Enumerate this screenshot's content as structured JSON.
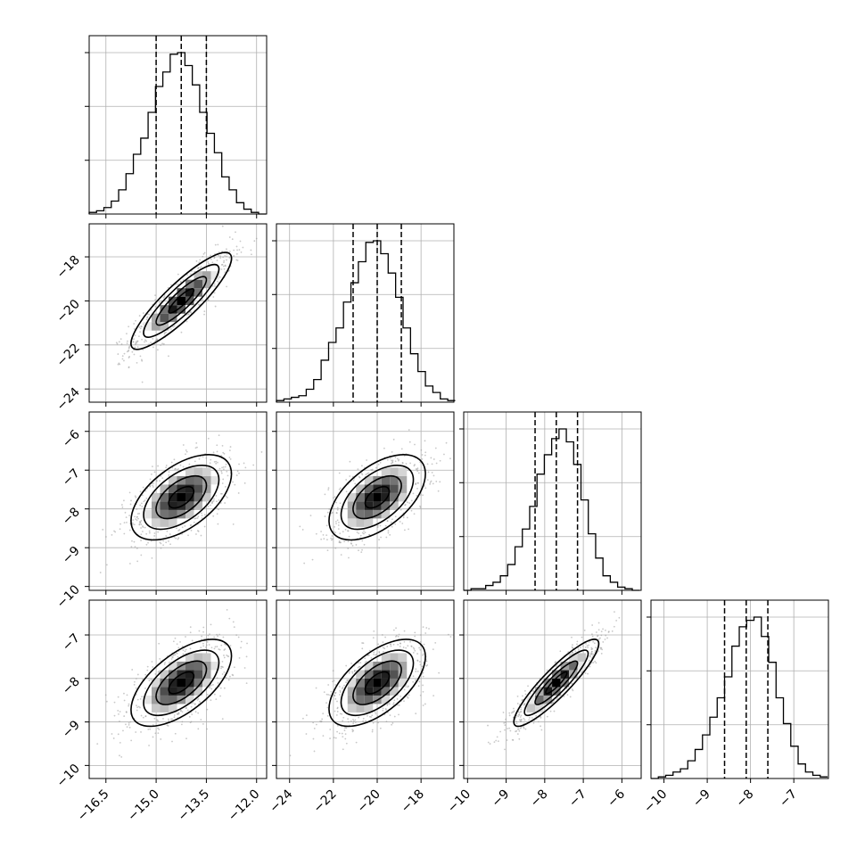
{
  "chart_data": {
    "type": "corner",
    "grid": true,
    "parameters": [
      {
        "range": [
          -17.0,
          -11.7
        ],
        "ticks": [
          "−16.5",
          "−15.0",
          "−13.5",
          "−12.0"
        ],
        "tick_values": [
          -16.5,
          -15.0,
          -13.5,
          -12.0
        ],
        "quantiles": [
          -15.0,
          -14.25,
          -13.5
        ],
        "mean": -14.25,
        "sigma": 0.75
      },
      {
        "range": [
          -24.6,
          -16.5
        ],
        "ticks": [
          "−24",
          "−22",
          "−20",
          "−18"
        ],
        "tick_values": [
          -24,
          -22,
          -20,
          -18
        ],
        "quantiles": [
          -21.1,
          -20.0,
          -18.9
        ],
        "mean": -20.0,
        "sigma": 1.1
      },
      {
        "range": [
          -10.1,
          -5.5
        ],
        "ticks": [
          "−10",
          "−9",
          "−8",
          "−7",
          "−6"
        ],
        "tick_values": [
          -10,
          -9,
          -8,
          -7,
          -6
        ],
        "quantiles": [
          -8.25,
          -7.7,
          -7.15
        ],
        "mean": -7.7,
        "sigma": 0.55
      },
      {
        "range": [
          -10.3,
          -6.2
        ],
        "ticks": [
          "−10",
          "−9",
          "−8",
          "−7"
        ],
        "tick_values": [
          -10,
          -9,
          -8,
          -7
        ],
        "quantiles": [
          -8.6,
          -8.1,
          -7.6
        ],
        "mean": -8.1,
        "sigma": 0.5
      }
    ],
    "histograms": [
      {
        "param": 0,
        "bins": [
          -17.0,
          -16.78,
          -16.56,
          -16.34,
          -16.12,
          -15.9,
          -15.68,
          -15.46,
          -15.24,
          -15.02,
          -14.8,
          -14.58,
          -14.36,
          -14.14,
          -13.92,
          -13.7,
          -13.48,
          -13.26,
          -13.04,
          -12.82,
          -12.6,
          -12.38,
          -12.16,
          -11.94,
          -11.72
        ],
        "counts": [
          1,
          2,
          4,
          8,
          15,
          25,
          37,
          47,
          63,
          79,
          88,
          99,
          100,
          92,
          80,
          63,
          50,
          38,
          23,
          15,
          7,
          3,
          1,
          0
        ]
      },
      {
        "param": 1,
        "bins": [
          -24.6,
          -24.26,
          -23.92,
          -23.58,
          -23.24,
          -22.9,
          -22.56,
          -22.22,
          -21.88,
          -21.54,
          -21.2,
          -20.86,
          -20.52,
          -20.18,
          -19.84,
          -19.5,
          -19.16,
          -18.82,
          -18.48,
          -18.14,
          -17.8,
          -17.46,
          -17.12,
          -16.78,
          -16.44
        ],
        "counts": [
          1,
          2,
          3,
          4,
          8,
          14,
          26,
          37,
          46,
          62,
          74,
          87,
          99,
          100,
          92,
          80,
          65,
          46,
          30,
          19,
          10,
          6,
          2,
          1
        ]
      },
      {
        "param": 2,
        "bins": [
          -10.1,
          -9.91,
          -9.72,
          -9.53,
          -9.34,
          -9.15,
          -8.96,
          -8.77,
          -8.58,
          -8.39,
          -8.2,
          -8.01,
          -7.82,
          -7.63,
          -7.44,
          -7.25,
          -7.06,
          -6.87,
          -6.68,
          -6.49,
          -6.3,
          -6.11,
          -5.92,
          -5.73,
          -5.54
        ],
        "counts": [
          0,
          1,
          1,
          3,
          5,
          9,
          16,
          27,
          38,
          52,
          72,
          84,
          94,
          100,
          92,
          78,
          56,
          35,
          20,
          9,
          5,
          2,
          1,
          0
        ]
      },
      {
        "param": 3,
        "bins": [
          -10.3,
          -10.13,
          -9.96,
          -9.79,
          -9.62,
          -9.45,
          -9.28,
          -9.11,
          -8.94,
          -8.77,
          -8.6,
          -8.43,
          -8.26,
          -8.09,
          -7.92,
          -7.75,
          -7.58,
          -7.41,
          -7.24,
          -7.07,
          -6.9,
          -6.73,
          -6.56,
          -6.39,
          -6.22
        ],
        "counts": [
          0,
          1,
          2,
          4,
          6,
          11,
          18,
          27,
          38,
          50,
          63,
          82,
          94,
          98,
          100,
          88,
          72,
          50,
          34,
          20,
          9,
          4,
          2,
          1
        ]
      }
    ],
    "pairs": [
      {
        "x": 0,
        "y": 1,
        "correlation": 0.88
      },
      {
        "x": 0,
        "y": 2,
        "correlation": 0.55
      },
      {
        "x": 1,
        "y": 2,
        "correlation": 0.55
      },
      {
        "x": 0,
        "y": 3,
        "correlation": 0.62
      },
      {
        "x": 1,
        "y": 3,
        "correlation": 0.6
      },
      {
        "x": 2,
        "y": 3,
        "correlation": 0.9
      }
    ],
    "contour_levels_sigma": [
      0.5,
      1.0,
      1.5,
      2.0
    ],
    "colors": {
      "line": "#000000",
      "grid": "#b0b0b0",
      "points": "#9a9a9a",
      "frame": "#000000"
    }
  }
}
